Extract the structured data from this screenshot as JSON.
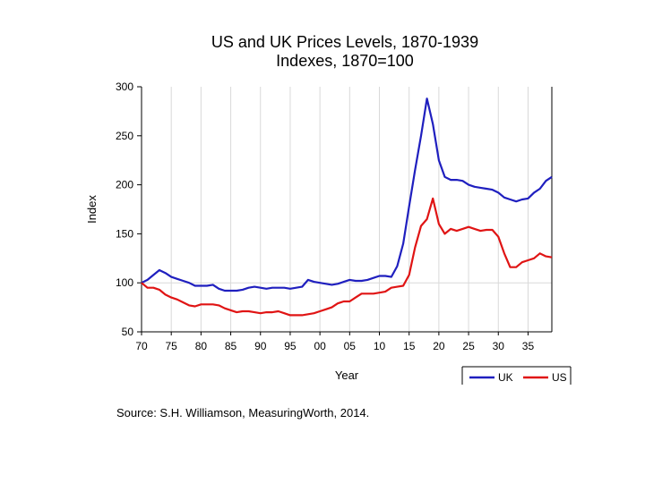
{
  "chart_data": {
    "type": "line",
    "title": "US and UK Prices Levels, 1870-1939",
    "subtitle": "Indexes, 1870=100",
    "xlabel": "Year",
    "ylabel": "Index",
    "xlim": [
      1870,
      1939
    ],
    "ylim": [
      50,
      300
    ],
    "yticks": [
      50,
      100,
      150,
      200,
      250,
      300
    ],
    "xticks": [
      1870,
      1875,
      1880,
      1885,
      1890,
      1895,
      1900,
      1905,
      1910,
      1915,
      1920,
      1925,
      1930,
      1935
    ],
    "xtick_labels": [
      "70",
      "75",
      "80",
      "85",
      "90",
      "95",
      "00",
      "05",
      "10",
      "15",
      "20",
      "25",
      "30",
      "35"
    ],
    "grid": true,
    "legend": "bottom-right",
    "x": [
      1870,
      1871,
      1872,
      1873,
      1874,
      1875,
      1876,
      1877,
      1878,
      1879,
      1880,
      1881,
      1882,
      1883,
      1884,
      1885,
      1886,
      1887,
      1888,
      1889,
      1890,
      1891,
      1892,
      1893,
      1894,
      1895,
      1896,
      1897,
      1898,
      1899,
      1900,
      1901,
      1902,
      1903,
      1904,
      1905,
      1906,
      1907,
      1908,
      1909,
      1910,
      1911,
      1912,
      1913,
      1914,
      1915,
      1916,
      1917,
      1918,
      1919,
      1920,
      1921,
      1922,
      1923,
      1924,
      1925,
      1926,
      1927,
      1928,
      1929,
      1930,
      1931,
      1932,
      1933,
      1934,
      1935,
      1936,
      1937,
      1938,
      1939
    ],
    "series": [
      {
        "name": "UK",
        "color": "#1f1fbf",
        "values": [
          100,
          103,
          108,
          113,
          110,
          106,
          104,
          102,
          100,
          97,
          97,
          97,
          98,
          94,
          92,
          92,
          92,
          93,
          95,
          96,
          95,
          94,
          95,
          95,
          95,
          94,
          95,
          96,
          103,
          101,
          100,
          99,
          98,
          99,
          101,
          103,
          102,
          102,
          103,
          105,
          107,
          107,
          106,
          117,
          140,
          178,
          215,
          250,
          288,
          262,
          225,
          208,
          205,
          205,
          204,
          200,
          198,
          197,
          196,
          195,
          192,
          187,
          185,
          183,
          185,
          186,
          192,
          196,
          204,
          208
        ]
      },
      {
        "name": "US",
        "color": "#e01414",
        "values": [
          100,
          95,
          95,
          93,
          88,
          85,
          83,
          80,
          77,
          76,
          78,
          78,
          78,
          77,
          74,
          72,
          70,
          71,
          71,
          70,
          69,
          70,
          70,
          71,
          69,
          67,
          67,
          67,
          68,
          69,
          71,
          73,
          75,
          79,
          81,
          81,
          85,
          89,
          89,
          89,
          90,
          91,
          95,
          96,
          97,
          108,
          136,
          158,
          165,
          186,
          160,
          150,
          155,
          153,
          155,
          157,
          155,
          153,
          154,
          154,
          147,
          130,
          116,
          116,
          121,
          123,
          125,
          130,
          127,
          126
        ]
      }
    ]
  },
  "source": "Source:  S.H. Williamson, MeasuringWorth, 2014."
}
